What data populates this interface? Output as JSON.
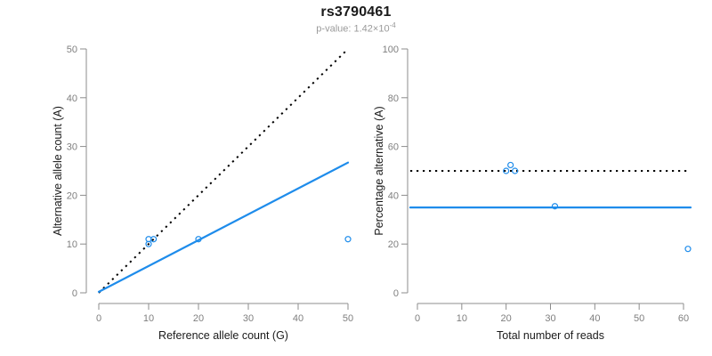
{
  "title": "rs3790461",
  "subtitle": {
    "prefix": "p-value: 1.42×10",
    "exponent": "-4"
  },
  "colors": {
    "accent_blue": "#1E8CEB",
    "line_black": "#000000",
    "axis_gray": "#8C8C8C",
    "tick_label_gray": "#7F7F7F",
    "axis_title_black": "#1A1A1A",
    "subtitle_gray": "#9A9A9A",
    "background": "#FFFFFF"
  },
  "chart_data": [
    {
      "type": "scatter",
      "panel": "left",
      "xlabel": "Reference allele count (G)",
      "ylabel": "Alternative allele count (A)",
      "xlim": [
        0,
        50
      ],
      "ylim": [
        0,
        50
      ],
      "xticks": [
        0,
        10,
        20,
        30,
        40,
        50
      ],
      "yticks": [
        0,
        10,
        20,
        30,
        40,
        50
      ],
      "grid": false,
      "legend": "none",
      "points": [
        [
          10,
          10
        ],
        [
          10,
          11
        ],
        [
          11,
          11
        ],
        [
          20,
          11
        ],
        [
          50,
          11
        ]
      ],
      "lines": [
        {
          "name": "identity-line",
          "style": "dotted",
          "color": "black",
          "from": [
            0,
            0
          ],
          "to": [
            50,
            50
          ]
        },
        {
          "name": "fit-line",
          "style": "solid",
          "color": "blue",
          "from": [
            0,
            0.2
          ],
          "to": [
            50,
            26.7
          ]
        }
      ]
    },
    {
      "type": "scatter",
      "panel": "right",
      "xlabel": "Total number of reads",
      "ylabel": "Percentage alternative (A)",
      "xlim": [
        0,
        60
      ],
      "ylim": [
        0,
        100
      ],
      "xticks": [
        0,
        10,
        20,
        30,
        40,
        50,
        60
      ],
      "yticks": [
        0,
        20,
        40,
        60,
        80,
        100
      ],
      "grid": false,
      "legend": "none",
      "points": [
        [
          20,
          50
        ],
        [
          21,
          52.4
        ],
        [
          22,
          50
        ],
        [
          31,
          35.5
        ],
        [
          61,
          18
        ]
      ],
      "lines": [
        {
          "name": "expected-percentage-line",
          "style": "dotted",
          "color": "black",
          "y": 50
        },
        {
          "name": "fitted-percentage-line",
          "style": "solid",
          "color": "blue",
          "y": 35
        }
      ]
    }
  ]
}
